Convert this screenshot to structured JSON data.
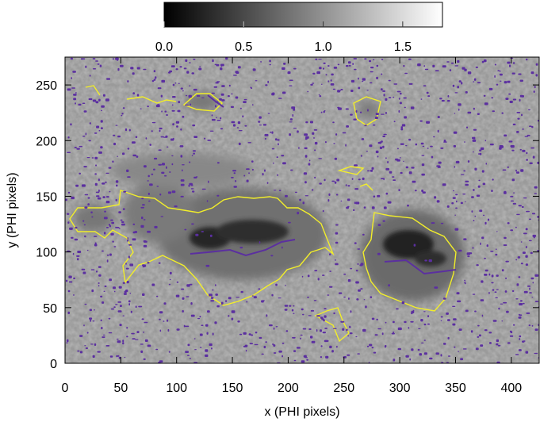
{
  "colorbar": {
    "ticks": [
      {
        "label": "0.0",
        "value": 0.0
      },
      {
        "label": "0.5",
        "value": 0.5
      },
      {
        "label": "1.0",
        "value": 1.0
      },
      {
        "label": "1.5",
        "value": 1.5
      }
    ],
    "range": [
      0,
      1.75
    ]
  },
  "axes": {
    "xlabel": "x (PHI pixels)",
    "ylabel": "y (PHI pixels)",
    "xlim": [
      0,
      425
    ],
    "ylim": [
      0,
      275
    ],
    "xticks": [
      {
        "label": "0",
        "value": 0
      },
      {
        "label": "50",
        "value": 50
      },
      {
        "label": "100",
        "value": 100
      },
      {
        "label": "150",
        "value": 150
      },
      {
        "label": "200",
        "value": 200
      },
      {
        "label": "250",
        "value": 250
      },
      {
        "label": "300",
        "value": 300
      },
      {
        "label": "350",
        "value": 350
      },
      {
        "label": "400",
        "value": 400
      }
    ],
    "yticks": [
      {
        "label": "0",
        "value": 0
      },
      {
        "label": "50",
        "value": 50
      },
      {
        "label": "100",
        "value": 100
      },
      {
        "label": "150",
        "value": 150
      },
      {
        "label": "200",
        "value": 200
      },
      {
        "label": "250",
        "value": 250
      }
    ]
  },
  "colors": {
    "contour_penumbra": "#f2ee2a",
    "contour_polarity": "#5b2fa0",
    "background_gray": "#9a9a9a"
  }
}
